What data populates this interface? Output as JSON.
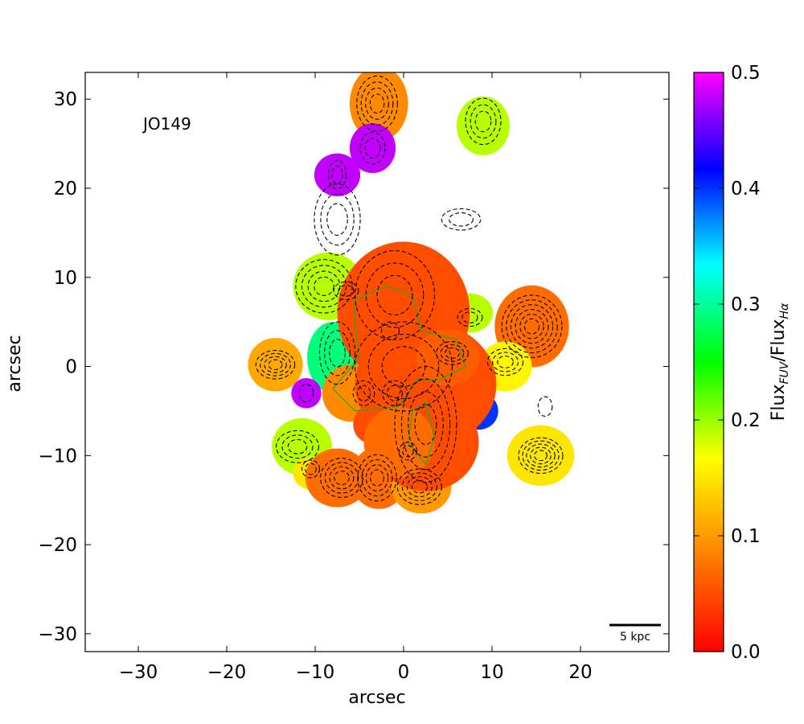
{
  "chart_data": {
    "type": "heatmap",
    "object_label": "JO149",
    "xlabel": "arcsec",
    "ylabel": "arcsec",
    "xlim": [
      -36,
      30
    ],
    "ylim": [
      -32,
      33
    ],
    "xticks": [
      -30,
      -20,
      -10,
      0,
      10,
      20
    ],
    "yticks": [
      -30,
      -20,
      -10,
      0,
      10,
      20,
      30
    ],
    "xtick_labels": [
      "−30",
      "−20",
      "−10",
      "0",
      "10",
      "20"
    ],
    "ytick_labels": [
      "−30",
      "−20",
      "−10",
      "0",
      "10",
      "20",
      "30"
    ],
    "colorbar": {
      "label_main": "Flux",
      "label_sub1": "FUV",
      "label_mid": "/Flux",
      "label_sub2": "Hα",
      "range": [
        0.0,
        0.5
      ],
      "ticks": [
        0.0,
        0.1,
        0.2,
        0.3,
        0.4,
        0.5
      ],
      "tick_labels": [
        "0.0",
        "0.1",
        "0.2",
        "0.3",
        "0.4",
        "0.5"
      ],
      "colormap": [
        "#ff0000",
        "#ff8000",
        "#ffff00",
        "#00ff00",
        "#00ffff",
        "#0000ff",
        "#ff00ff"
      ]
    },
    "scale_bar": {
      "label": "5 kpc",
      "length_arcsec": 6
    },
    "regions": [
      {
        "x": -2.8,
        "y": 29.5,
        "rx": 3.3,
        "ry": 4.2,
        "value": 0.09
      },
      {
        "x": -3.5,
        "y": 24.5,
        "rx": 2.6,
        "ry": 2.8,
        "value": 0.48
      },
      {
        "x": -7.5,
        "y": 21.5,
        "rx": 2.6,
        "ry": 2.4,
        "value": 0.48
      },
      {
        "x": 9.0,
        "y": 27.0,
        "rx": 3.0,
        "ry": 3.3,
        "value": 0.19
      },
      {
        "x": -8.5,
        "y": 9.0,
        "rx": 4.0,
        "ry": 3.8,
        "value": 0.19
      },
      {
        "x": 14.5,
        "y": 4.5,
        "rx": 4.2,
        "ry": 4.6,
        "value": 0.07
      },
      {
        "x": 7.5,
        "y": 6.0,
        "rx": 2.6,
        "ry": 2.2,
        "value": 0.19
      },
      {
        "x": 11.5,
        "y": 0.0,
        "rx": 3.0,
        "ry": 2.8,
        "value": 0.16
      },
      {
        "x": -8.0,
        "y": 1.0,
        "rx": 2.9,
        "ry": 4.0,
        "value": 0.29
      },
      {
        "x": -14.5,
        "y": 0.2,
        "rx": 3.1,
        "ry": 3.0,
        "value": 0.11
      },
      {
        "x": -11.0,
        "y": -3.0,
        "rx": 1.7,
        "ry": 1.7,
        "value": 0.48
      },
      {
        "x": -6.0,
        "y": -3.0,
        "rx": 3.2,
        "ry": 3.2,
        "value": 0.09
      },
      {
        "x": 8.5,
        "y": -5.0,
        "rx": 2.2,
        "ry": 2.1,
        "value": 0.4
      },
      {
        "x": 6.5,
        "y": -2.8,
        "rx": 2.0,
        "ry": 1.6,
        "value": 0.17
      },
      {
        "x": 15.5,
        "y": -10.0,
        "rx": 3.8,
        "ry": 3.4,
        "value": 0.15
      },
      {
        "x": -11.5,
        "y": -9.0,
        "rx": 3.4,
        "ry": 3.2,
        "value": 0.19
      },
      {
        "x": -10.5,
        "y": -12.0,
        "rx": 2.0,
        "ry": 1.8,
        "value": 0.15
      },
      {
        "x": -7.5,
        "y": -12.5,
        "rx": 3.6,
        "ry": 3.3,
        "value": 0.07
      },
      {
        "x": -2.8,
        "y": -12.5,
        "rx": 3.2,
        "ry": 3.5,
        "value": 0.07
      },
      {
        "x": 2.0,
        "y": -13.5,
        "rx": 3.4,
        "ry": 3.0,
        "value": 0.1
      },
      {
        "x": 0.0,
        "y": 6.0,
        "rx": 7.5,
        "ry": 8.0,
        "value": 0.05
      },
      {
        "x": 2.5,
        "y": -2.0,
        "rx": 8.0,
        "ry": 7.0,
        "value": 0.05
      },
      {
        "x": 2.5,
        "y": -8.5,
        "rx": 6.0,
        "ry": 5.5,
        "value": 0.05
      },
      {
        "x": -3.5,
        "y": -6.5,
        "rx": 2.2,
        "ry": 2.2,
        "value": 0.05
      },
      {
        "x": 5.0,
        "y": 1.0,
        "rx": 3.6,
        "ry": 3.2,
        "value": 0.06
      },
      {
        "x": -0.5,
        "y": -8.5,
        "rx": 4.0,
        "ry": 4.0,
        "value": 0.07
      }
    ],
    "contour_groups": [
      {
        "x": -3.0,
        "y": 29.5,
        "rx": 2.3,
        "ry": 3.1,
        "levels": 4
      },
      {
        "x": -3.5,
        "y": 24.5,
        "rx": 1.4,
        "ry": 1.8,
        "levels": 2
      },
      {
        "x": -7.5,
        "y": 21.5,
        "rx": 1.0,
        "ry": 1.6,
        "levels": 2
      },
      {
        "x": 9.0,
        "y": 27.5,
        "rx": 2.0,
        "ry": 2.6,
        "levels": 3
      },
      {
        "x": -7.5,
        "y": 16.5,
        "rx": 2.6,
        "ry": 4.0,
        "levels": 3
      },
      {
        "x": 6.5,
        "y": 16.5,
        "rx": 2.2,
        "ry": 1.2,
        "levels": 2
      },
      {
        "x": -9.0,
        "y": 9.0,
        "rx": 3.2,
        "ry": 3.0,
        "levels": 4
      },
      {
        "x": -6.5,
        "y": 8.5,
        "rx": 1.4,
        "ry": 1.0,
        "levels": 2
      },
      {
        "x": -1.0,
        "y": 8.0,
        "rx": 4.5,
        "ry": 5.0,
        "levels": 3
      },
      {
        "x": -1.5,
        "y": 4.0,
        "rx": 1.0,
        "ry": 1.0,
        "levels": 1
      },
      {
        "x": 14.5,
        "y": 4.5,
        "rx": 3.4,
        "ry": 3.5,
        "levels": 6
      },
      {
        "x": 7.5,
        "y": 5.5,
        "rx": 1.4,
        "ry": 1.0,
        "levels": 2
      },
      {
        "x": 11.5,
        "y": 0.5,
        "rx": 2.0,
        "ry": 1.5,
        "levels": 3
      },
      {
        "x": 5.5,
        "y": 1.5,
        "rx": 1.8,
        "ry": 1.3,
        "levels": 3
      },
      {
        "x": 0.0,
        "y": 0.0,
        "rx": 5.5,
        "ry": 5.0,
        "levels": 3
      },
      {
        "x": -7.5,
        "y": 1.5,
        "rx": 2.0,
        "ry": 3.5,
        "levels": 3
      },
      {
        "x": -14.5,
        "y": 0.2,
        "rx": 2.2,
        "ry": 1.6,
        "levels": 4
      },
      {
        "x": -11.0,
        "y": -3.0,
        "rx": 0.8,
        "ry": 1.0,
        "levels": 1
      },
      {
        "x": -4.5,
        "y": -3.0,
        "rx": 1.2,
        "ry": 1.4,
        "levels": 2
      },
      {
        "x": -1.0,
        "y": -3.0,
        "rx": 1.4,
        "ry": 1.4,
        "levels": 2
      },
      {
        "x": 2.5,
        "y": -6.5,
        "rx": 3.5,
        "ry": 6.5,
        "levels": 4
      },
      {
        "x": 16.0,
        "y": -4.5,
        "rx": 0.8,
        "ry": 1.1,
        "levels": 1
      },
      {
        "x": 15.5,
        "y": -10.0,
        "rx": 2.5,
        "ry": 2.0,
        "levels": 5
      },
      {
        "x": -12.0,
        "y": -9.0,
        "rx": 2.4,
        "ry": 1.8,
        "levels": 3
      },
      {
        "x": -10.5,
        "y": -11.5,
        "rx": 1.0,
        "ry": 1.0,
        "levels": 2
      },
      {
        "x": -7.0,
        "y": -12.5,
        "rx": 2.4,
        "ry": 2.2,
        "levels": 4
      },
      {
        "x": -3.0,
        "y": -12.5,
        "rx": 2.2,
        "ry": 2.6,
        "levels": 4
      },
      {
        "x": 1.8,
        "y": -13.5,
        "rx": 2.5,
        "ry": 2.0,
        "levels": 4
      },
      {
        "x": 0.5,
        "y": -9.5,
        "rx": 1.0,
        "ry": 1.0,
        "levels": 2
      }
    ],
    "green_contours": [
      [
        [
          -5.5,
          7.5
        ],
        [
          -2.0,
          9.0
        ],
        [
          1.0,
          8.0
        ],
        [
          2.0,
          4.0
        ],
        [
          6.0,
          3.0
        ],
        [
          7.0,
          0.0
        ],
        [
          4.0,
          -1.5
        ],
        [
          1.5,
          -1.5
        ],
        [
          -0.5,
          -4.5
        ],
        [
          -5.5,
          -5.0
        ],
        [
          -8.0,
          -2.5
        ],
        [
          -5.0,
          1.0
        ],
        [
          -5.5,
          4.5
        ]
      ],
      [
        [
          2.5,
          -4.0
        ],
        [
          3.5,
          -8.0
        ],
        [
          2.5,
          -11.0
        ],
        [
          0.5,
          -8.5
        ],
        [
          1.0,
          -5.0
        ]
      ]
    ]
  }
}
